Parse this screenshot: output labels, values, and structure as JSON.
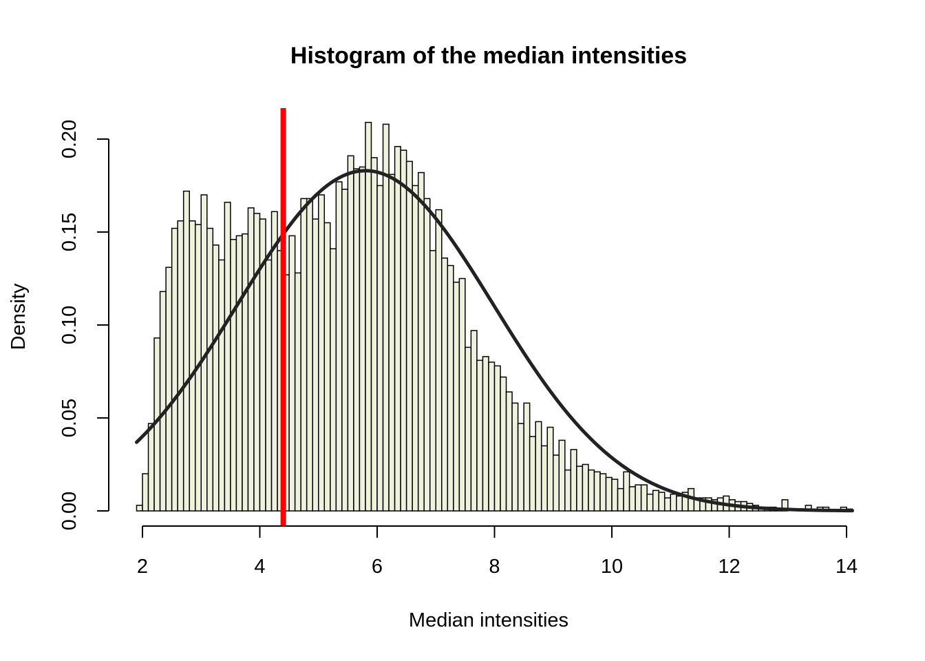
{
  "chart_data": {
    "type": "bar",
    "title": "Histogram of the median intensities",
    "xlabel": "Median intensities",
    "ylabel": "Density",
    "xlim": [
      2,
      14
    ],
    "ylim": [
      0,
      0.2
    ],
    "x_ticks": [
      "2",
      "4",
      "6",
      "8",
      "10",
      "12",
      "14"
    ],
    "y_ticks": [
      "0.00",
      "0.05",
      "0.10",
      "0.15",
      "0.20"
    ],
    "bar_color": "#EEF2DC",
    "bin_start": 1.9,
    "bin_width": 0.1,
    "densities": [
      0.003,
      0.02,
      0.047,
      0.093,
      0.118,
      0.131,
      0.152,
      0.156,
      0.172,
      0.156,
      0.154,
      0.17,
      0.152,
      0.143,
      0.135,
      0.166,
      0.146,
      0.148,
      0.149,
      0.163,
      0.16,
      0.157,
      0.135,
      0.161,
      0.14,
      0.127,
      0.148,
      0.128,
      0.168,
      0.168,
      0.157,
      0.17,
      0.155,
      0.141,
      0.177,
      0.173,
      0.191,
      0.184,
      0.185,
      0.209,
      0.19,
      0.175,
      0.208,
      0.181,
      0.196,
      0.194,
      0.188,
      0.175,
      0.182,
      0.168,
      0.14,
      0.162,
      0.136,
      0.132,
      0.123,
      0.125,
      0.088,
      0.097,
      0.081,
      0.083,
      0.08,
      0.078,
      0.072,
      0.064,
      0.058,
      0.047,
      0.058,
      0.04,
      0.048,
      0.035,
      0.045,
      0.03,
      0.038,
      0.022,
      0.033,
      0.024,
      0.025,
      0.022,
      0.021,
      0.02,
      0.018,
      0.017,
      0.012,
      0.021,
      0.013,
      0.014,
      0.014,
      0.009,
      0.011,
      0.01,
      0.007,
      0.009,
      0.008,
      0.01,
      0.012,
      0.007,
      0.007,
      0.007,
      0.006,
      0.007,
      0.008,
      0.006,
      0.005,
      0.005,
      0.004,
      0.003,
      0.001,
      0.002,
      0.002,
      0.001,
      0.006,
      0.0,
      0.0,
      0.0,
      0.003,
      0.001,
      0.002,
      0.002,
      0.0,
      0.0,
      0.002,
      0.001
    ],
    "normal_curve": {
      "mean": 5.8,
      "sd": 2.18,
      "color": "#222222"
    },
    "vline": {
      "x": 4.4,
      "color": "#FF0000"
    }
  }
}
